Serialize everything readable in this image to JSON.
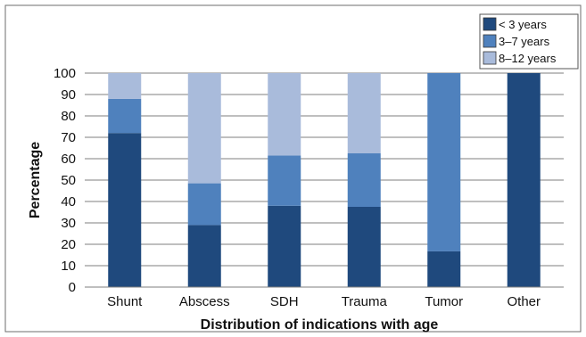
{
  "chart_data": {
    "type": "bar",
    "stacked": true,
    "categories": [
      "Shunt",
      "Abscess",
      "SDH",
      "Trauma",
      "Tumor",
      "Other"
    ],
    "series": [
      {
        "name": "< 3 years",
        "color": "#1f497d",
        "values": [
          72,
          29,
          38,
          37.5,
          16.7,
          100
        ]
      },
      {
        "name": "3–7 years",
        "color": "#4f81bd",
        "values": [
          16,
          19.5,
          23.5,
          25,
          83.3,
          0
        ]
      },
      {
        "name": "8–12 years",
        "color": "#a9bbdb",
        "values": [
          12,
          51.5,
          38.5,
          37.5,
          0,
          0
        ]
      }
    ],
    "xlabel": "Distribution of indications with age",
    "ylabel": "Percentage",
    "ylim": [
      0,
      100
    ],
    "yticks": [
      0,
      10,
      20,
      30,
      40,
      50,
      60,
      70,
      80,
      90,
      100
    ],
    "grid": true,
    "legend": "top-right"
  }
}
